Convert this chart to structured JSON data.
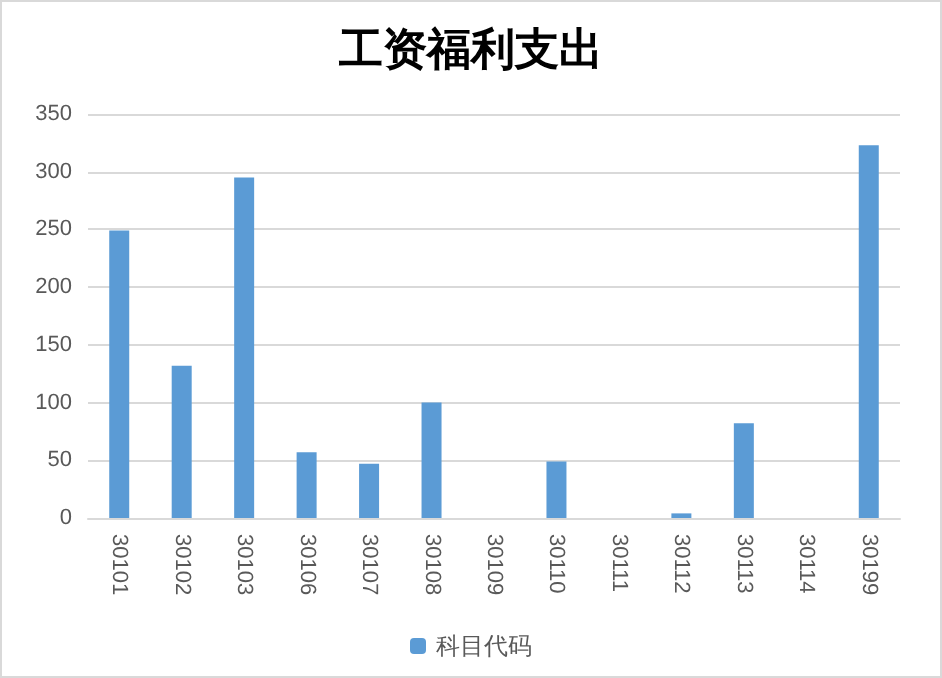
{
  "chart_data": {
    "type": "bar",
    "title": "工资福利支出",
    "categories": [
      "30101",
      "30102",
      "30103",
      "30106",
      "30107",
      "30108",
      "30109",
      "30110",
      "30111",
      "30112",
      "30113",
      "30114",
      "30199"
    ],
    "series": [
      {
        "name": "科目代码",
        "color": "#5b9bd5",
        "values": [
          249,
          132,
          295,
          57,
          47,
          100,
          0,
          49,
          0,
          4,
          82,
          0,
          323
        ]
      }
    ],
    "ylim": [
      0,
      350
    ],
    "yticks": [
      0,
      50,
      100,
      150,
      200,
      250,
      300,
      350
    ],
    "grid": "y",
    "legend": "bottom"
  }
}
